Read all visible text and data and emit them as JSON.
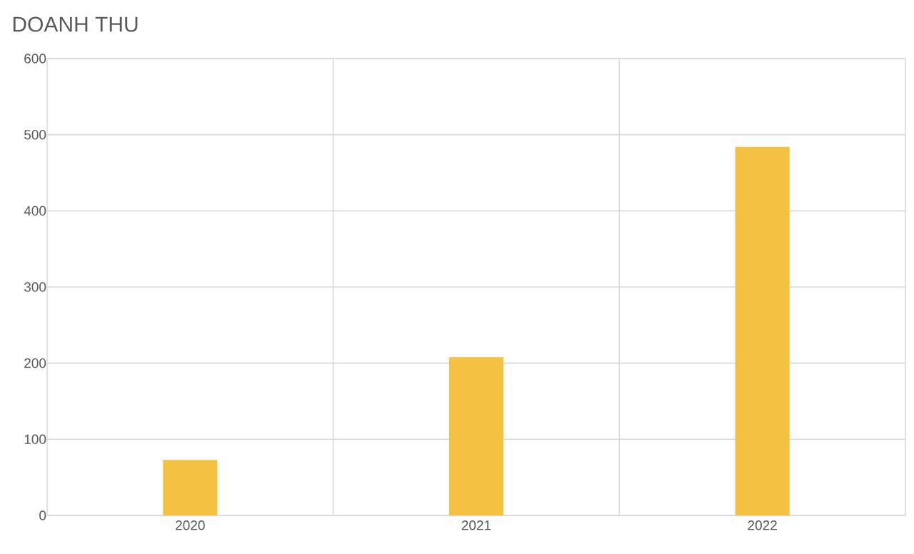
{
  "chart_data": {
    "type": "bar",
    "title": "DOANH THU",
    "categories": [
      "2020",
      "2021",
      "2022"
    ],
    "values": [
      73,
      208,
      484
    ],
    "color": "#f4c143",
    "ylim": [
      0,
      600
    ],
    "yticks": [
      0,
      100,
      200,
      300,
      400,
      500,
      600
    ],
    "grid": true
  }
}
